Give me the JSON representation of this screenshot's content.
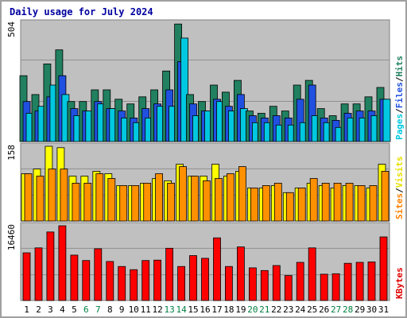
{
  "chart_data": {
    "type": "bar",
    "title": "Daily usage for July 2024",
    "x": [
      "1",
      "2",
      "3",
      "4",
      "5",
      "6",
      "7",
      "8",
      "9",
      "10",
      "11",
      "12",
      "13",
      "14",
      "15",
      "16",
      "17",
      "18",
      "19",
      "20",
      "21",
      "22",
      "23",
      "24",
      "25",
      "26",
      "27",
      "28",
      "29",
      "30",
      "31"
    ],
    "weekend_days": [
      6,
      7,
      13,
      14,
      20,
      21,
      27,
      28
    ],
    "panels": [
      {
        "id": "hits-panel",
        "ymax": 504,
        "ymax_label": "504",
        "gridlines": [
          0.33,
          0.67
        ],
        "labels": [
          {
            "text": "Pages",
            "color": "#00c8e0"
          },
          {
            "text": "Files",
            "color": "#2050e0"
          },
          {
            "text": "Hits",
            "color": "#208060"
          }
        ],
        "series": [
          {
            "name": "Hits",
            "color": "#208060",
            "values": [
              280,
              200,
              330,
              390,
              170,
              170,
              220,
              220,
              180,
              160,
              190,
              220,
              300,
              500,
              200,
              170,
              240,
              210,
              260,
              130,
              120,
              150,
              130,
              240,
              260,
              140,
              110,
              160,
              160,
              190,
              230
            ]
          },
          {
            "name": "Files",
            "color": "#2050e0",
            "values": [
              170,
              130,
              190,
              280,
              140,
              130,
              170,
              140,
              130,
              100,
              140,
              160,
              220,
              340,
              160,
              130,
              180,
              150,
              200,
              110,
              100,
              110,
              100,
              180,
              240,
              100,
              90,
              120,
              130,
              130,
              180
            ]
          },
          {
            "name": "Pages",
            "color": "#00c8e0",
            "values": [
              120,
              150,
              240,
              200,
              110,
              130,
              160,
              140,
              100,
              80,
              100,
              150,
              150,
              440,
              110,
              130,
              170,
              130,
              140,
              80,
              80,
              70,
              70,
              80,
              110,
              80,
              60,
              100,
              100,
              110,
              180
            ]
          }
        ]
      },
      {
        "id": "visits-panel",
        "ymax": 158,
        "ymax_label": "158",
        "gridlines": [
          0.33,
          0.67
        ],
        "labels": [
          {
            "text": "Sites",
            "color": "#ff8000"
          },
          {
            "text": "Visits",
            "color": "#e8e000"
          }
        ],
        "series": [
          {
            "name": "Visits",
            "color": "#ffff00",
            "values": [
              100,
              110,
              158,
              155,
              95,
              95,
              105,
              100,
              75,
              75,
              80,
              90,
              85,
              120,
              95,
              95,
              120,
              95,
              105,
              70,
              70,
              75,
              60,
              70,
              80,
              75,
              70,
              75,
              75,
              70,
              120
            ]
          },
          {
            "name": "Sites",
            "color": "#ff9000",
            "values": [
              100,
              95,
              110,
              110,
              80,
              80,
              100,
              90,
              75,
              75,
              80,
              100,
              80,
              115,
              95,
              85,
              90,
              100,
              115,
              70,
              75,
              80,
              60,
              70,
              90,
              80,
              80,
              80,
              75,
              75,
              105
            ]
          }
        ]
      },
      {
        "id": "kbytes-panel",
        "ymax": 16460,
        "ymax_label": "16460",
        "gridlines": [
          0.33,
          0.67
        ],
        "labels": [
          {
            "text": "KBytes",
            "color": "#e00000"
          }
        ],
        "series": [
          {
            "name": "KBytes",
            "color": "#ff0000",
            "values": [
              10500,
              11600,
              15100,
              16460,
              10000,
              8800,
              11400,
              8600,
              7500,
              6800,
              8800,
              8900,
              11500,
              7500,
              9900,
              9300,
              13800,
              7500,
              11800,
              7200,
              6600,
              7700,
              5500,
              8400,
              11600,
              5800,
              5900,
              8200,
              8400,
              8500,
              14000
            ]
          }
        ]
      }
    ],
    "colors": {
      "plot_bg": "#c0c0c0",
      "frame": "#808080",
      "weekday_label": "#000000",
      "weekend_label": "#008040",
      "title": "#0000a0"
    }
  }
}
